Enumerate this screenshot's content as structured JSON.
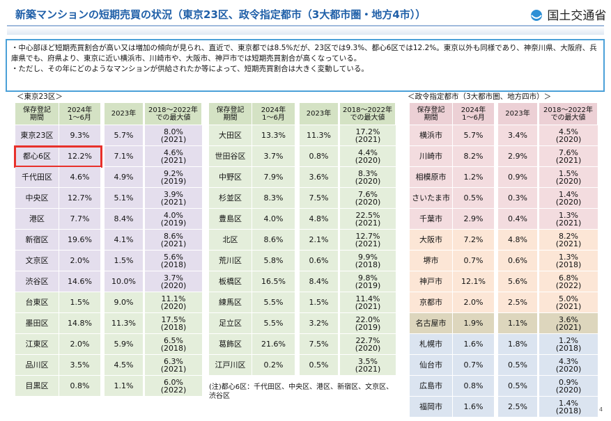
{
  "header": {
    "title": "新築マンションの短期売買の状況（東京23区、政令指定都市（3大都市圏・地方4市））",
    "logo": "国土交通省"
  },
  "summary": [
    "・中心部ほど短期売買割合が高い又は増加の傾向が見られ、直近で、東京都では8.5%だが、23区では9.3%、都心6区では12.2%。東京以外も同様であり、神奈川県、大阪府、兵庫県でも、府県より、東京に近い横浜市、川崎市や、大阪市、神戸市では短期売買割合が高くなっている。",
    "・ただし、その年にどのようなマンションが供給されたか等によって、短期売買割合は大きく変動している。"
  ],
  "sections": [
    "＜東京23区＞",
    "＜政令指定都市（3大都市圏、地方四市）＞"
  ],
  "tables": [
    {
      "header": [
        "保存登記\n期間",
        "2024年\n1～6月",
        "2023年",
        "2018～2022年\nでの最大値"
      ],
      "groups": [
        {
          "rows": [
            {
              "cells": [
                "東京23区",
                "9.3%",
                "5.7%",
                "8.0%",
                "(2021)"
              ]
            },
            {
              "cells": [
                "都心6区",
                "12.2%",
                "7.1%",
                "4.6%",
                "(2021)"
              ],
              "highlight": true
            },
            {
              "cells": [
                "千代田区",
                "4.6%",
                "4.9%",
                "9.2%",
                "(2019)"
              ]
            },
            {
              "cells": [
                "中央区",
                "12.7%",
                "5.1%",
                "3.9%",
                "(2021)"
              ]
            },
            {
              "cells": [
                "港区",
                "7.7%",
                "8.4%",
                "4.0%",
                "(2019)"
              ]
            },
            {
              "cells": [
                "新宿区",
                "19.6%",
                "4.1%",
                "8.6%",
                "(2021)"
              ]
            },
            {
              "cells": [
                "文京区",
                "2.0%",
                "1.5%",
                "5.6%",
                "(2018)"
              ]
            },
            {
              "cells": [
                "渋谷区",
                "14.6%",
                "10.0%",
                "3.7%",
                "(2020)"
              ]
            }
          ]
        },
        {
          "rows": [
            {
              "cells": [
                "台東区",
                "1.5%",
                "9.0%",
                "11.1%",
                "(2020)"
              ]
            },
            {
              "cells": [
                "墨田区",
                "14.8%",
                "11.3%",
                "17.5%",
                "(2018)"
              ]
            },
            {
              "cells": [
                "江東区",
                "2.0%",
                "5.9%",
                "6.5%",
                "(2018)"
              ]
            },
            {
              "cells": [
                "品川区",
                "3.5%",
                "4.5%",
                "6.3%",
                "(2021)"
              ]
            },
            {
              "cells": [
                "目黒区",
                "0.8%",
                "1.1%",
                "6.0%",
                "(2022)"
              ]
            }
          ]
        }
      ]
    },
    {
      "header": [
        "保存登記\n期間",
        "2024年\n1～6月",
        "2023年",
        "2018～2022年\nでの最大値"
      ],
      "groups": [
        {
          "rows": [
            {
              "cells": [
                "大田区",
                "13.3%",
                "11.3%",
                "17.2%",
                "(2021)"
              ]
            },
            {
              "cells": [
                "世田谷区",
                "3.7%",
                "0.8%",
                "4.4%",
                "(2020)"
              ]
            },
            {
              "cells": [
                "中野区",
                "7.9%",
                "3.6%",
                "8.3%",
                "(2020)"
              ]
            },
            {
              "cells": [
                "杉並区",
                "8.3%",
                "7.5%",
                "7.6%",
                "(2020)"
              ]
            },
            {
              "cells": [
                "豊島区",
                "4.0%",
                "4.8%",
                "22.5%",
                "(2021)"
              ]
            },
            {
              "cells": [
                "北区",
                "8.6%",
                "2.1%",
                "12.7%",
                "(2021)"
              ]
            },
            {
              "cells": [
                "荒川区",
                "5.8%",
                "0.6%",
                "9.9%",
                "(2018)"
              ]
            },
            {
              "cells": [
                "板橋区",
                "16.5%",
                "8.4%",
                "9.8%",
                "(2019)"
              ]
            },
            {
              "cells": [
                "練馬区",
                "5.5%",
                "1.5%",
                "11.4%",
                "(2021)"
              ]
            },
            {
              "cells": [
                "足立区",
                "5.5%",
                "3.2%",
                "22.0%",
                "(2019)"
              ]
            },
            {
              "cells": [
                "葛飾区",
                "21.6%",
                "7.5%",
                "22.7%",
                "(2020)"
              ]
            },
            {
              "cells": [
                "江戸川区",
                "0.2%",
                "0.5%",
                "3.5%",
                "(2021)"
              ]
            }
          ]
        }
      ],
      "note": "(注)都心6区：千代田区、中央区、港区、新宿区、文京区、渋谷区"
    },
    {
      "header": [
        "保存登記\n期間",
        "2024年\n1～6月",
        "2023年",
        "2018～2022年\nでの最大値"
      ],
      "groups": [
        {
          "rows": [
            {
              "cells": [
                "横浜市",
                "5.7%",
                "3.4%",
                "4.5%",
                "(2020)"
              ]
            },
            {
              "cells": [
                "川崎市",
                "8.2%",
                "2.9%",
                "7.6%",
                "(2021)"
              ]
            },
            {
              "cells": [
                "相模原市",
                "1.2%",
                "0.9%",
                "1.5%",
                "(2020)"
              ]
            },
            {
              "cells": [
                "さいたま市",
                "0.5%",
                "0.3%",
                "1.4%",
                "(2020)"
              ]
            },
            {
              "cells": [
                "千葉市",
                "2.9%",
                "0.4%",
                "1.3%",
                "(2021)"
              ]
            }
          ]
        },
        {
          "rows": [
            {
              "cells": [
                "大阪市",
                "7.2%",
                "4.8%",
                "8.2%",
                "(2021)"
              ]
            },
            {
              "cells": [
                "堺市",
                "0.7%",
                "0.6%",
                "1.3%",
                "(2018)"
              ]
            },
            {
              "cells": [
                "神戸市",
                "12.1%",
                "5.6%",
                "6.8%",
                "(2022)"
              ]
            },
            {
              "cells": [
                "京都市",
                "2.0%",
                "2.5%",
                "5.0%",
                "(2021)"
              ]
            }
          ]
        },
        {
          "rows": [
            {
              "cells": [
                "名古屋市",
                "1.9%",
                "1.1%",
                "3.6%",
                "(2021)"
              ]
            }
          ]
        },
        {
          "rows": [
            {
              "cells": [
                "札幌市",
                "1.6%",
                "1.8%",
                "1.2%",
                "(2018)"
              ]
            },
            {
              "cells": [
                "仙台市",
                "0.7%",
                "0.5%",
                "4.3%",
                "(2020)"
              ]
            },
            {
              "cells": [
                "広島市",
                "0.8%",
                "0.5%",
                "0.9%",
                "(2020)"
              ]
            },
            {
              "cells": [
                "福岡市",
                "1.6%",
                "2.5%",
                "1.4%",
                "(2018)"
              ]
            }
          ]
        }
      ]
    }
  ],
  "page_number": "4"
}
